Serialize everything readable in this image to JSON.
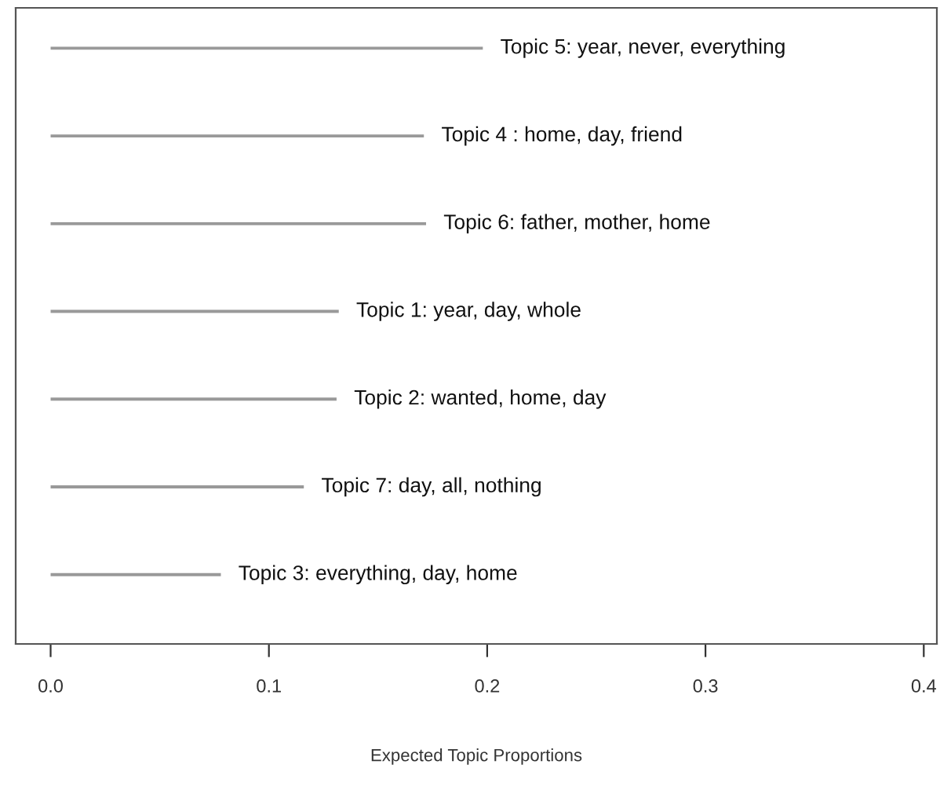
{
  "chart_data": {
    "type": "bar",
    "orientation": "horizontal",
    "xlabel": "Expected Topic Proportions",
    "categories": [
      "Topic 5: year, never, everything",
      "Topic 4 : home, day, friend",
      "Topic 6: father, mother, home",
      "Topic 1: year, day, whole",
      "Topic 2: wanted, home, day",
      "Topic 7: day, all, nothing",
      "Topic 3: everything, day, home"
    ],
    "values": [
      0.198,
      0.171,
      0.172,
      0.132,
      0.131,
      0.116,
      0.078
    ],
    "color": "#999999",
    "xlim": [
      -0.016,
      0.406
    ],
    "xticks": [
      {
        "value": 0,
        "label": "0.0"
      },
      {
        "value": 0.1,
        "label": "0.1"
      },
      {
        "value": 0.2,
        "label": "0.2"
      },
      {
        "value": 0.3,
        "label": "0.3"
      },
      {
        "value": 0.4,
        "label": "0.4"
      }
    ],
    "tick_labels": "x",
    "grid": false,
    "legend": false
  }
}
